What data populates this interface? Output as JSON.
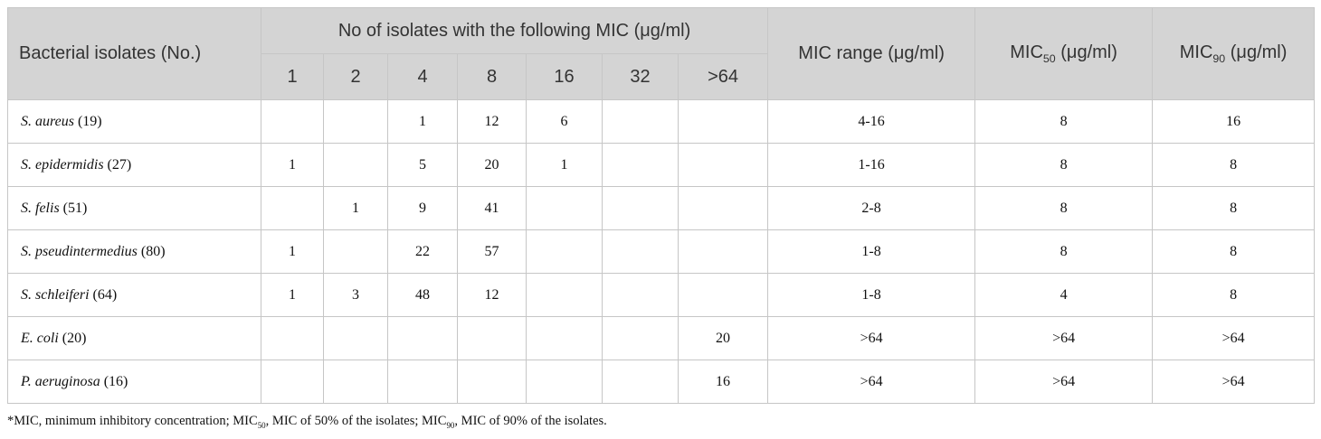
{
  "table": {
    "header": {
      "isolates": "Bacterial isolates (No.)",
      "group": "No of isolates with the following MIC (μg/ml)",
      "mics": [
        "1",
        "2",
        "4",
        "8",
        "16",
        "32",
        ">64"
      ],
      "range": "MIC range (μg/ml)",
      "mic50": {
        "text": "MIC",
        "sub": "50",
        "unit": "(μg/ml)"
      },
      "mic90": {
        "text": "MIC",
        "sub": "90",
        "unit": "(μg/ml)"
      }
    },
    "rows": [
      {
        "species": "S. aureus",
        "count": "(19)",
        "cells": [
          null,
          null,
          1,
          12,
          6,
          null,
          null
        ],
        "range": "4-16",
        "mic50": 8,
        "mic90": 16
      },
      {
        "species": "S. epidermidis",
        "count": "(27)",
        "cells": [
          1,
          null,
          5,
          20,
          1,
          null,
          null
        ],
        "range": "1-16",
        "mic50": 8,
        "mic90": 8
      },
      {
        "species": "S. felis",
        "count": "(51)",
        "cells": [
          null,
          1,
          9,
          41,
          null,
          null,
          null
        ],
        "range": "2-8",
        "mic50": 8,
        "mic90": 8
      },
      {
        "species": "S. pseudintermedius",
        "count": "(80)",
        "cells": [
          1,
          null,
          22,
          57,
          null,
          null,
          null
        ],
        "range": "1-8",
        "mic50": 8,
        "mic90": 8
      },
      {
        "species": "S. schleiferi",
        "count": "(64)",
        "cells": [
          1,
          3,
          48,
          12,
          null,
          null,
          null
        ],
        "range": "1-8",
        "mic50": 4,
        "mic90": 8
      },
      {
        "species": "E. coli",
        "count": "(20)",
        "cells": [
          null,
          null,
          null,
          null,
          null,
          null,
          20
        ],
        "range": ">64",
        "mic50": ">64",
        "mic90": ">64"
      },
      {
        "species": "P. aeruginosa",
        "count": "(16)",
        "cells": [
          null,
          null,
          null,
          null,
          null,
          null,
          16
        ],
        "range": ">64",
        "mic50": ">64",
        "mic90": ">64"
      }
    ],
    "footnote": [
      "*MIC, minimum inhibitory concentration; MIC",
      "50",
      ", MIC of 50% of the isolates; MIC",
      "90",
      ", MIC of 90% of the isolates."
    ]
  }
}
